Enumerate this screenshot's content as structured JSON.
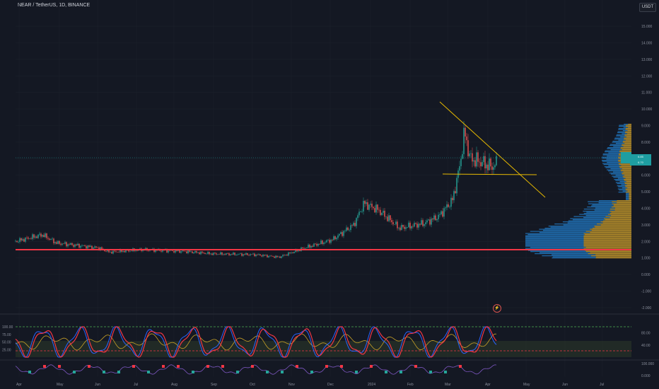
{
  "chart_title": "NEAR / TetherUS, 1D, BINANCE",
  "currency_button": "USDT",
  "colors": {
    "bg": "#141823",
    "up": "#26a69a",
    "down": "#ef5350",
    "trendline": "#e6b800",
    "support": "#f23645",
    "stoch_blue": "#2962ff",
    "stoch_red": "#f23645",
    "rsi_yellow": "#c9a227"
  },
  "price_axis": [
    "15.000",
    "14.000",
    "13.000",
    "12.000",
    "11.000",
    "10.000",
    "9.000",
    "8.000",
    "7.000",
    "6.000",
    "5.000",
    "4.000",
    "3.000",
    "2.000",
    "1.000",
    "0.000",
    "-1.000",
    "-2.000"
  ],
  "osc_axis_left": [
    "100.00",
    "75.00",
    "50.00",
    "25.00"
  ],
  "osc_axis_right": [
    "80.00",
    "40.00"
  ],
  "mini_axis_right": [
    "100.000",
    "0.000"
  ],
  "months": [
    "Apr",
    "May",
    "Jun",
    "Jul",
    "Aug",
    "Sep",
    "Oct",
    "Nov",
    "Dec",
    "2024",
    "Feb",
    "Mar",
    "Apr",
    "May",
    "Jun",
    "Jul"
  ],
  "chart_data": {
    "type": "line",
    "title": "NEAR / TetherUS, 1D, BINANCE",
    "x": [
      "Apr",
      "May",
      "Jun",
      "Jul",
      "Aug",
      "Sep",
      "Oct",
      "Nov",
      "Dec",
      "2024",
      "Feb",
      "Mar",
      "Apr"
    ],
    "series": [
      {
        "values": [
          2.0,
          1.7,
          1.35,
          1.4,
          1.35,
          1.2,
          1.05,
          1.7,
          2.5,
          4.0,
          3.0,
          8.5,
          6.7
        ]
      }
    ],
    "ylim": [
      -2,
      15.5
    ],
    "annotations": {
      "support_line": 1.5,
      "triangle_base": 6.0
    }
  }
}
